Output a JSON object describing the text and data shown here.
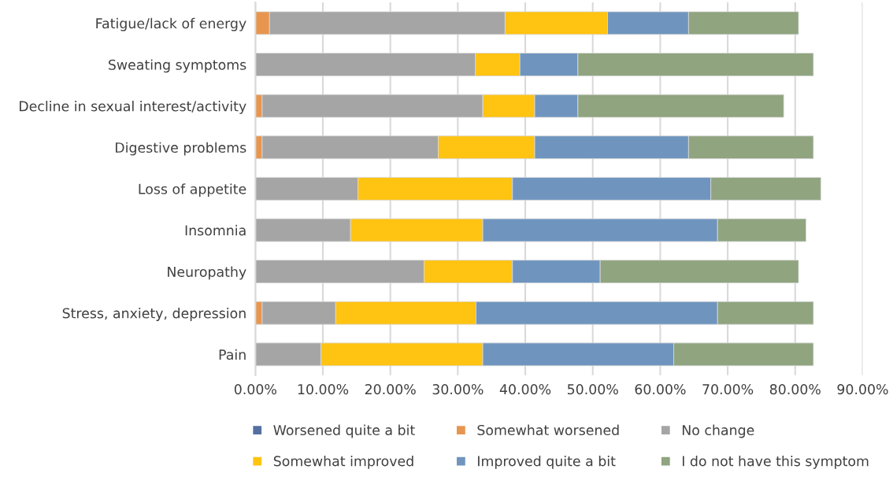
{
  "chart_data": {
    "type": "bar",
    "orientation": "horizontal",
    "stacked": true,
    "categories": [
      "Fatigue/lack of energy",
      "Sweating symptoms",
      "Decline in sexual interest/activity",
      "Digestive problems",
      "Loss of appetite",
      "Insomnia",
      "Neuropathy",
      "Stress, anxiety, depression",
      "Pain"
    ],
    "series": [
      {
        "name": "Worsened quite a bit",
        "color": "#5470a0",
        "values": [
          0,
          0,
          0,
          0,
          0,
          0,
          0,
          0,
          0
        ]
      },
      {
        "name": "Somewhat worsened",
        "color": "#e8964f",
        "values": [
          2.1,
          0,
          1.0,
          1.0,
          0,
          0,
          0,
          1.0,
          0
        ]
      },
      {
        "name": "No change",
        "color": "#a5a5a5",
        "values": [
          34.9,
          32.6,
          32.7,
          26.1,
          15.2,
          14.1,
          25.0,
          10.9,
          9.7
        ]
      },
      {
        "name": "Somewhat improved",
        "color": "#ffc311",
        "values": [
          15.2,
          6.6,
          7.7,
          14.3,
          22.9,
          19.6,
          13.1,
          20.8,
          24.0
        ]
      },
      {
        "name": "Improved quite a bit",
        "color": "#6f95bf",
        "values": [
          12.0,
          8.6,
          6.4,
          22.8,
          29.4,
          34.8,
          13.0,
          35.8,
          28.3
        ]
      },
      {
        "name": "I do not have this symptom",
        "color": "#8fa47f",
        "values": [
          16.3,
          34.9,
          30.5,
          18.5,
          16.3,
          13.1,
          29.4,
          14.2,
          20.7
        ]
      }
    ],
    "xlim": [
      0,
      90
    ],
    "xticks": [
      {
        "value": 0,
        "label": "0.00%"
      },
      {
        "value": 10,
        "label": "10.00%"
      },
      {
        "value": 20,
        "label": "20.00%"
      },
      {
        "value": 30,
        "label": "30.00%"
      },
      {
        "value": 40,
        "label": "40.00%"
      },
      {
        "value": 50,
        "label": "50.00%"
      },
      {
        "value": 60,
        "label": "60.00%"
      },
      {
        "value": 70,
        "label": "70.00%"
      },
      {
        "value": 80,
        "label": "80.00%"
      },
      {
        "value": 90,
        "label": "90.00%"
      }
    ],
    "grid": "x",
    "legend": "bottom"
  }
}
